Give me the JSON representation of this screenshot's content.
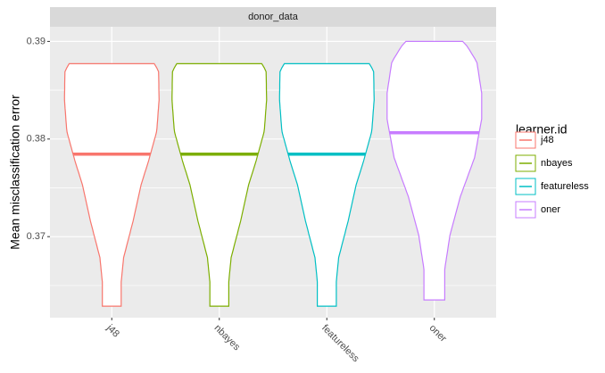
{
  "chart_data": {
    "type": "violin",
    "facet": "donor_data",
    "ylabel": "Mean misclassification error",
    "legend_title": "learner.id",
    "categories": [
      "j48",
      "nbayes",
      "featureless",
      "oner"
    ],
    "colors": [
      "#f8766d",
      "#7cae00",
      "#00bfc4",
      "#c77cff"
    ],
    "values": [
      0.37845,
      0.37845,
      0.37845,
      0.38064
    ],
    "min": [
      0.36288,
      0.36288,
      0.36288,
      0.36352
    ],
    "max": [
      0.38772,
      0.38772,
      0.38772,
      0.39
    ],
    "ylim": [
      0.3617,
      0.3915
    ],
    "yticks": [
      {
        "value": 0.37,
        "label": "0.37"
      },
      {
        "value": 0.38,
        "label": "0.38"
      },
      {
        "value": 0.39,
        "label": "0.39"
      }
    ],
    "grid": true
  }
}
